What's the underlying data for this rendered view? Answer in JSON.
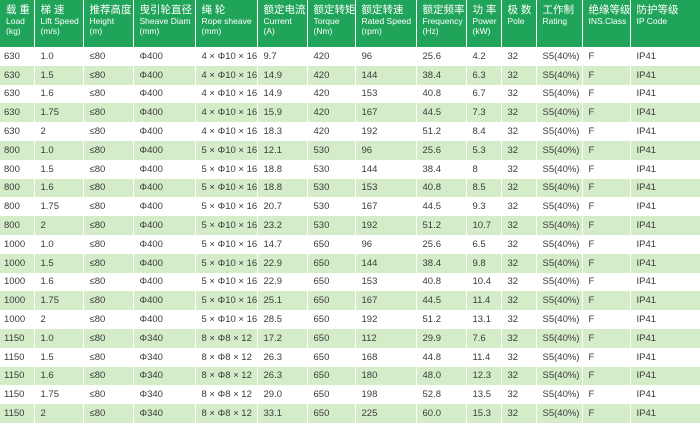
{
  "header": {
    "columns": [
      {
        "cn": "载 重",
        "en1": "Load",
        "en2": "(kg)"
      },
      {
        "cn": "梯 速",
        "en1": "Lift Speed",
        "en2": "(m/s)"
      },
      {
        "cn": "推荐高度",
        "en1": "Height",
        "en2": "(m)"
      },
      {
        "cn": "曳引轮直径",
        "en1": "Sheave Diam",
        "en2": "(mm)"
      },
      {
        "cn": "绳 轮",
        "en1": "Rope sheave",
        "en2": "(mm)"
      },
      {
        "cn": "额定电流",
        "en1": "Current",
        "en2": "(A)"
      },
      {
        "cn": "额定转矩",
        "en1": "Torque",
        "en2": "(Nm)"
      },
      {
        "cn": "额定转速",
        "en1": "Rated Speed",
        "en2": "(rpm)"
      },
      {
        "cn": "额定频率",
        "en1": "Frequency",
        "en2": "(Hz)"
      },
      {
        "cn": "功 率",
        "en1": "Power",
        "en2": "(kW)"
      },
      {
        "cn": "极 数",
        "en1": "Pole",
        "en2": ""
      },
      {
        "cn": "工作制",
        "en1": "Rating",
        "en2": ""
      },
      {
        "cn": "绝缘等级",
        "en1": "INS.Class",
        "en2": ""
      },
      {
        "cn": "防护等级",
        "en1": "IP Code",
        "en2": ""
      }
    ]
  },
  "rows": [
    [
      "630",
      "1.0",
      "≤80",
      "Φ400",
      "4 × Φ10 × 16",
      "9.7",
      "420",
      "96",
      "25.6",
      "4.2",
      "32",
      "S5(40%)",
      "F",
      "IP41"
    ],
    [
      "630",
      "1.5",
      "≤80",
      "Φ400",
      "4 × Φ10 × 16",
      "14.9",
      "420",
      "144",
      "38.4",
      "6.3",
      "32",
      "S5(40%)",
      "F",
      "IP41"
    ],
    [
      "630",
      "1.6",
      "≤80",
      "Φ400",
      "4 × Φ10 × 16",
      "14.9",
      "420",
      "153",
      "40.8",
      "6.7",
      "32",
      "S5(40%)",
      "F",
      "IP41"
    ],
    [
      "630",
      "1.75",
      "≤80",
      "Φ400",
      "4 × Φ10 × 16",
      "15.9",
      "420",
      "167",
      "44.5",
      "7.3",
      "32",
      "S5(40%)",
      "F",
      "IP41"
    ],
    [
      "630",
      "2",
      "≤80",
      "Φ400",
      "4 × Φ10 × 16",
      "18.3",
      "420",
      "192",
      "51.2",
      "8.4",
      "32",
      "S5(40%)",
      "F",
      "IP41"
    ],
    [
      "800",
      "1.0",
      "≤80",
      "Φ400",
      "5 × Φ10 × 16",
      "12.1",
      "530",
      "96",
      "25.6",
      "5.3",
      "32",
      "S5(40%)",
      "F",
      "IP41"
    ],
    [
      "800",
      "1.5",
      "≤80",
      "Φ400",
      "5 × Φ10 × 16",
      "18.8",
      "530",
      "144",
      "38.4",
      "8",
      "32",
      "S5(40%)",
      "F",
      "IP41"
    ],
    [
      "800",
      "1.6",
      "≤80",
      "Φ400",
      "5 × Φ10 × 16",
      "18.8",
      "530",
      "153",
      "40.8",
      "8.5",
      "32",
      "S5(40%)",
      "F",
      "IP41"
    ],
    [
      "800",
      "1.75",
      "≤80",
      "Φ400",
      "5 × Φ10 × 16",
      "20.7",
      "530",
      "167",
      "44.5",
      "9.3",
      "32",
      "S5(40%)",
      "F",
      "IP41"
    ],
    [
      "800",
      "2",
      "≤80",
      "Φ400",
      "5 × Φ10 × 16",
      "23.2",
      "530",
      "192",
      "51.2",
      "10.7",
      "32",
      "S5(40%)",
      "F",
      "IP41"
    ],
    [
      "1000",
      "1.0",
      "≤80",
      "Φ400",
      "5 × Φ10 × 16",
      "14.7",
      "650",
      "96",
      "25.6",
      "6.5",
      "32",
      "S5(40%)",
      "F",
      "IP41"
    ],
    [
      "1000",
      "1.5",
      "≤80",
      "Φ400",
      "5 × Φ10 × 16",
      "22.9",
      "650",
      "144",
      "38.4",
      "9.8",
      "32",
      "S5(40%)",
      "F",
      "IP41"
    ],
    [
      "1000",
      "1.6",
      "≤80",
      "Φ400",
      "5 × Φ10 × 16",
      "22.9",
      "650",
      "153",
      "40.8",
      "10.4",
      "32",
      "S5(40%)",
      "F",
      "IP41"
    ],
    [
      "1000",
      "1.75",
      "≤80",
      "Φ400",
      "5 × Φ10 × 16",
      "25.1",
      "650",
      "167",
      "44.5",
      "11.4",
      "32",
      "S5(40%)",
      "F",
      "IP41"
    ],
    [
      "1000",
      "2",
      "≤80",
      "Φ400",
      "5 × Φ10 × 16",
      "28.5",
      "650",
      "192",
      "51.2",
      "13.1",
      "32",
      "S5(40%)",
      "F",
      "IP41"
    ],
    [
      "1150",
      "1.0",
      "≤80",
      "Φ340",
      "8 × Φ8 × 12",
      "17.2",
      "650",
      "112",
      "29.9",
      "7.6",
      "32",
      "S5(40%)",
      "F",
      "IP41"
    ],
    [
      "1150",
      "1.5",
      "≤80",
      "Φ340",
      "8 × Φ8 × 12",
      "26.3",
      "650",
      "168",
      "44.8",
      "11.4",
      "32",
      "S5(40%)",
      "F",
      "IP41"
    ],
    [
      "1150",
      "1.6",
      "≤80",
      "Φ340",
      "8 × Φ8 × 12",
      "26.3",
      "650",
      "180",
      "48.0",
      "12.3",
      "32",
      "S5(40%)",
      "F",
      "IP41"
    ],
    [
      "1150",
      "1.75",
      "≤80",
      "Φ340",
      "8 × Φ8 × 12",
      "29.0",
      "650",
      "198",
      "52.8",
      "13.5",
      "32",
      "S5(40%)",
      "F",
      "IP41"
    ],
    [
      "1150",
      "2",
      "≤80",
      "Φ340",
      "8 × Φ8 × 12",
      "33.1",
      "650",
      "225",
      "60.0",
      "15.3",
      "32",
      "S5(40%)",
      "F",
      "IP41"
    ]
  ],
  "colors": {
    "header_bg": "#1fa45a",
    "stripe_bg": "#d5ecc9",
    "text": "#3a3a3a"
  }
}
